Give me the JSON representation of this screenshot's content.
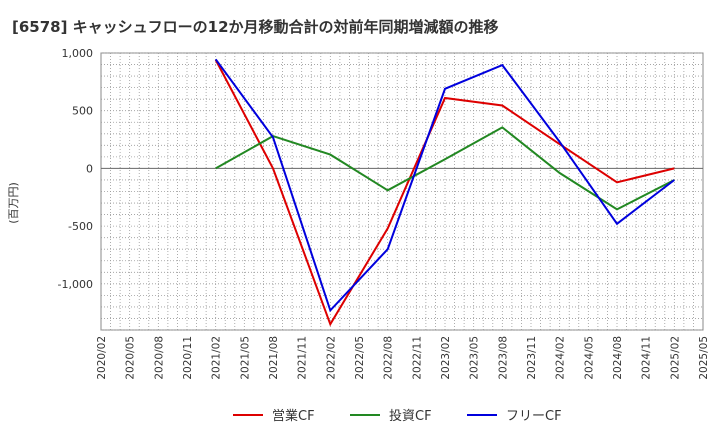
{
  "chart_data": {
    "type": "line",
    "title": "[6578]  キャッシュフローの12か月移動合計の対前年同期増減額の推移",
    "ylabel": "(百万円)",
    "xlabel": "",
    "ylim": [
      -1400,
      1000
    ],
    "y_ticks": [
      1000,
      500,
      0,
      -500,
      -1000
    ],
    "y_tick_labels": [
      "1,000",
      "500",
      "0",
      "-500",
      "-1,000"
    ],
    "x_tick_labels": [
      "2020/02",
      "2020/05",
      "2020/08",
      "2020/11",
      "2021/02",
      "2021/05",
      "2021/08",
      "2021/11",
      "2022/02",
      "2022/05",
      "2022/08",
      "2022/11",
      "2023/02",
      "2023/05",
      "2023/08",
      "2023/11",
      "2024/02",
      "2024/05",
      "2024/08",
      "2024/11",
      "2025/02",
      "2025/05"
    ],
    "grid": true,
    "legend_position": "bottom",
    "series": [
      {
        "name": "営業CF",
        "color": "#dd0000",
        "points": [
          [
            "2021/02",
            940
          ],
          [
            "2021/08",
            0
          ],
          [
            "2022/02",
            -1350
          ],
          [
            "2022/08",
            -520
          ],
          [
            "2023/02",
            610
          ],
          [
            "2023/08",
            545
          ],
          [
            "2024/02",
            210
          ],
          [
            "2024/08",
            -120
          ],
          [
            "2025/02",
            0
          ]
        ]
      },
      {
        "name": "投資CF",
        "color": "#228822",
        "points": [
          [
            "2021/02",
            0
          ],
          [
            "2021/08",
            280
          ],
          [
            "2022/02",
            120
          ],
          [
            "2022/08",
            -190
          ],
          [
            "2023/02",
            80
          ],
          [
            "2023/08",
            355
          ],
          [
            "2024/02",
            -40
          ],
          [
            "2024/08",
            -355
          ],
          [
            "2025/02",
            -100
          ]
        ]
      },
      {
        "name": "フリーCF",
        "color": "#0000dd",
        "points": [
          [
            "2021/02",
            945
          ],
          [
            "2021/08",
            270
          ],
          [
            "2022/02",
            -1230
          ],
          [
            "2022/08",
            -700
          ],
          [
            "2023/02",
            690
          ],
          [
            "2023/08",
            895
          ],
          [
            "2024/02",
            230
          ],
          [
            "2024/08",
            -480
          ],
          [
            "2025/02",
            -100
          ]
        ]
      }
    ]
  }
}
